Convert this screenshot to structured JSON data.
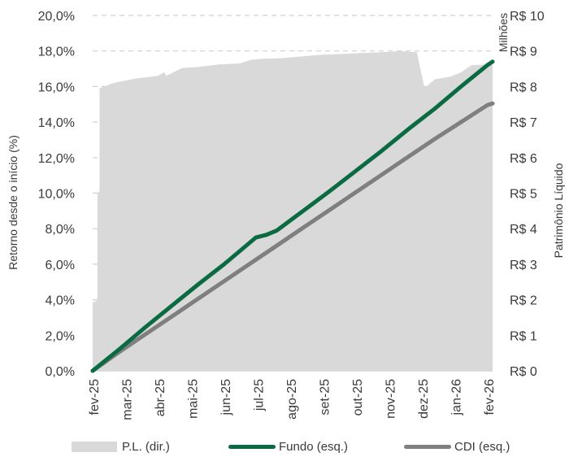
{
  "chart_data": {
    "type": "line",
    "x_ticks": [
      "fev-25",
      "mar-25",
      "abr-25",
      "mai-25",
      "jun-25",
      "jul-25",
      "ago-25",
      "set-25",
      "out-25",
      "nov-25",
      "dez-25",
      "jan-26",
      "fev-26"
    ],
    "y_left": {
      "label": "Retorno desde o início (%)",
      "ticks": [
        "0,0%",
        "2,0%",
        "4,0%",
        "6,0%",
        "8,0%",
        "10,0%",
        "12,0%",
        "14,0%",
        "16,0%",
        "18,0%",
        "20,0%"
      ],
      "range": [
        0,
        20
      ]
    },
    "y_right": {
      "label": "Patrimônio Líquido",
      "unit_label": "Milhões",
      "ticks": [
        "R$ 0",
        "R$ 1",
        "R$ 2",
        "R$ 3",
        "R$ 4",
        "R$ 5",
        "R$ 6",
        "R$ 7",
        "R$ 8",
        "R$ 9",
        "R$ 10"
      ],
      "range": [
        0,
        10
      ]
    },
    "grid": "horizontal dashed",
    "legend_position": "bottom",
    "series": [
      {
        "name": "P.L. (dir.)",
        "type": "area",
        "axis": "right",
        "color": "#d9d9d9",
        "points": [
          [
            0,
            0
          ],
          [
            0,
            1.92
          ],
          [
            0.02,
            1.95
          ],
          [
            0.045,
            1.97
          ],
          [
            0.045,
            5.0
          ],
          [
            0.065,
            5.05
          ],
          [
            0.065,
            7.95
          ],
          [
            0.2,
            8.1
          ],
          [
            0.4,
            8.22
          ],
          [
            0.62,
            8.3
          ],
          [
            0.68,
            8.4
          ],
          [
            0.7,
            8.3
          ],
          [
            0.85,
            8.52
          ],
          [
            1.0,
            8.55
          ],
          [
            1.2,
            8.62
          ],
          [
            1.4,
            8.65
          ],
          [
            1.5,
            8.75
          ],
          [
            1.6,
            8.78
          ],
          [
            1.8,
            8.8
          ],
          [
            2.0,
            8.85
          ],
          [
            2.2,
            8.9
          ],
          [
            2.4,
            8.92
          ],
          [
            2.6,
            8.95
          ],
          [
            2.8,
            8.97
          ],
          [
            2.92,
            9.0
          ],
          [
            3.0,
            8.98
          ],
          [
            3.08,
            8.97
          ],
          [
            3.15,
            8.0
          ],
          [
            3.18,
            8.02
          ],
          [
            3.25,
            8.2
          ],
          [
            3.4,
            8.28
          ],
          [
            3.5,
            8.4
          ],
          [
            3.6,
            8.6
          ],
          [
            3.75,
            8.62
          ],
          [
            3.8,
            8.6
          ]
        ]
      },
      {
        "name": "Fundo (esq.)",
        "type": "line",
        "axis": "left",
        "color": "#0a6b43",
        "points": [
          [
            0,
            0
          ],
          [
            0.25,
            1.2
          ],
          [
            0.5,
            2.45
          ],
          [
            0.75,
            3.65
          ],
          [
            1.0,
            4.85
          ],
          [
            1.25,
            6.0
          ],
          [
            1.5,
            7.25
          ],
          [
            1.55,
            7.5
          ],
          [
            1.65,
            7.65
          ],
          [
            1.75,
            7.9
          ],
          [
            2.0,
            9.0
          ],
          [
            2.25,
            10.1
          ],
          [
            2.5,
            11.25
          ],
          [
            2.75,
            12.4
          ],
          [
            3.0,
            13.6
          ],
          [
            3.25,
            14.75
          ],
          [
            3.5,
            16.0
          ],
          [
            3.75,
            17.2
          ],
          [
            3.8,
            17.4
          ]
        ]
      },
      {
        "name": "CDI (esq.)",
        "type": "line",
        "axis": "left",
        "color": "#7f7f7f",
        "points": [
          [
            0,
            0
          ],
          [
            0.25,
            1.05
          ],
          [
            0.5,
            2.05
          ],
          [
            0.75,
            3.05
          ],
          [
            1.0,
            4.05
          ],
          [
            1.25,
            5.05
          ],
          [
            1.5,
            6.05
          ],
          [
            1.75,
            7.05
          ],
          [
            2.0,
            8.05
          ],
          [
            2.25,
            9.05
          ],
          [
            2.5,
            10.05
          ],
          [
            2.75,
            11.05
          ],
          [
            3.0,
            12.05
          ],
          [
            3.25,
            13.05
          ],
          [
            3.5,
            14.0
          ],
          [
            3.75,
            14.95
          ],
          [
            3.8,
            15.05
          ]
        ]
      }
    ],
    "x_range": [
      0,
      3.8
    ]
  },
  "legend": [
    {
      "label": "P.L. (dir.)",
      "swatch": "area",
      "color": "#d9d9d9"
    },
    {
      "label": "Fundo (esq.)",
      "swatch": "line",
      "color": "#0a6b43"
    },
    {
      "label": "CDI (esq.)",
      "swatch": "line",
      "color": "#7f7f7f"
    }
  ]
}
